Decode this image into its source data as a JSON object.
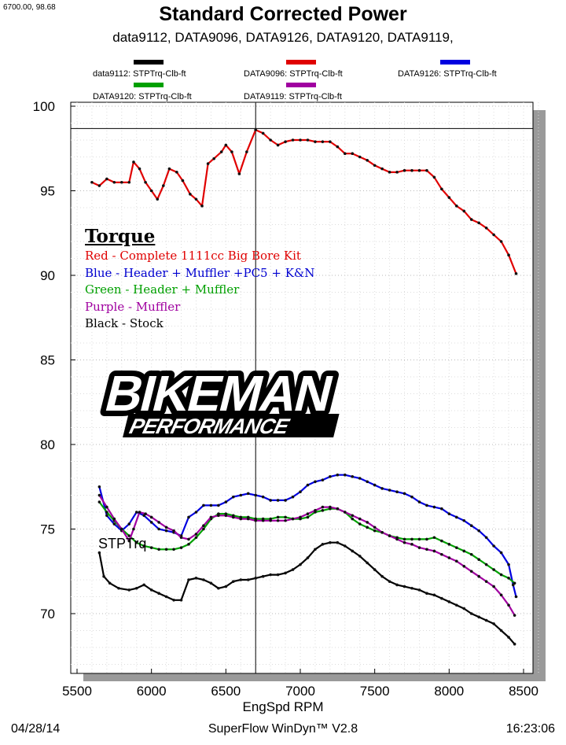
{
  "header": {
    "coord_readout": "6700.00, 98.68",
    "title": "Standard Corrected Power",
    "subtitle": "data9112, DATA9096, DATA9126, DATA9120, DATA9119,"
  },
  "legend": [
    {
      "label": "data9112: STPTrq-Clb-ft",
      "color": "#000000"
    },
    {
      "label": "DATA9096: STPTrq-Clb-ft",
      "color": "#e00000"
    },
    {
      "label": "DATA9126: STPTrq-Clb-ft",
      "color": "#0000e0"
    },
    {
      "label": "DATA9120: STPTrq-Clb-ft",
      "color": "#00a000"
    },
    {
      "label": "DATA9119: STPTrq-Clb-ft",
      "color": "#a000a0"
    }
  ],
  "annotation": {
    "heading": "Torque",
    "lines": [
      {
        "text": "Red - Complete 1111cc Big Bore Kit",
        "color": "#e00000"
      },
      {
        "text": "Blue - Header + Muffler +PC5 + K&N",
        "color": "#0000d0"
      },
      {
        "text": "Green - Header + Muffler",
        "color": "#00a000"
      },
      {
        "text": "Purple - Muffler",
        "color": "#a000a0"
      },
      {
        "text": "Black - Stock",
        "color": "#000000"
      }
    ]
  },
  "logo": {
    "line1": "BIKEMAN",
    "line2": "PERFORMANCE"
  },
  "footer": {
    "date": "04/28/14",
    "app": "SuperFlow WinDyn™ V2.8",
    "time": "16:23:06"
  },
  "chart_data": {
    "type": "line",
    "title": "Standard Corrected Power",
    "xlabel": "EngSpd  RPM",
    "ylabel": "",
    "series_label": "STPTrq",
    "xlim": [
      5500,
      8600
    ],
    "ylim": [
      67,
      100.5
    ],
    "xticks": [
      5500,
      6000,
      6500,
      7000,
      7500,
      8000,
      8500
    ],
    "yticks": [
      70,
      75,
      80,
      85,
      90,
      95,
      100
    ],
    "cursor": {
      "x": 6700,
      "y": 98.68
    },
    "grid": true,
    "series": [
      {
        "name": "data9112: STPTrq-Clb-ft",
        "color": "#000000",
        "points": [
          [
            5650,
            73.6
          ],
          [
            5680,
            72.2
          ],
          [
            5720,
            71.8
          ],
          [
            5780,
            71.5
          ],
          [
            5850,
            71.4
          ],
          [
            5900,
            71.5
          ],
          [
            5950,
            71.7
          ],
          [
            6000,
            71.4
          ],
          [
            6050,
            71.2
          ],
          [
            6100,
            71.0
          ],
          [
            6150,
            70.8
          ],
          [
            6200,
            70.8
          ],
          [
            6250,
            72.0
          ],
          [
            6300,
            72.1
          ],
          [
            6350,
            72.0
          ],
          [
            6400,
            71.8
          ],
          [
            6450,
            71.5
          ],
          [
            6500,
            71.6
          ],
          [
            6550,
            71.9
          ],
          [
            6600,
            72.0
          ],
          [
            6650,
            72.0
          ],
          [
            6700,
            72.1
          ],
          [
            6750,
            72.2
          ],
          [
            6800,
            72.3
          ],
          [
            6850,
            72.3
          ],
          [
            6900,
            72.4
          ],
          [
            6950,
            72.6
          ],
          [
            7000,
            72.9
          ],
          [
            7050,
            73.3
          ],
          [
            7100,
            73.8
          ],
          [
            7150,
            74.1
          ],
          [
            7200,
            74.2
          ],
          [
            7250,
            74.2
          ],
          [
            7300,
            74.0
          ],
          [
            7350,
            73.7
          ],
          [
            7400,
            73.4
          ],
          [
            7450,
            73.0
          ],
          [
            7500,
            72.6
          ],
          [
            7550,
            72.2
          ],
          [
            7600,
            71.9
          ],
          [
            7650,
            71.7
          ],
          [
            7700,
            71.6
          ],
          [
            7750,
            71.5
          ],
          [
            7800,
            71.4
          ],
          [
            7850,
            71.2
          ],
          [
            7900,
            71.1
          ],
          [
            7950,
            70.9
          ],
          [
            8000,
            70.7
          ],
          [
            8050,
            70.5
          ],
          [
            8100,
            70.3
          ],
          [
            8150,
            70.0
          ],
          [
            8200,
            69.8
          ],
          [
            8250,
            69.6
          ],
          [
            8300,
            69.4
          ],
          [
            8350,
            69.0
          ],
          [
            8400,
            68.6
          ],
          [
            8440,
            68.2
          ]
        ]
      },
      {
        "name": "DATA9096: STPTrq-Clb-ft",
        "color": "#e00000",
        "points": [
          [
            5600,
            95.5
          ],
          [
            5650,
            95.3
          ],
          [
            5700,
            95.7
          ],
          [
            5750,
            95.5
          ],
          [
            5800,
            95.5
          ],
          [
            5850,
            95.5
          ],
          [
            5880,
            96.7
          ],
          [
            5920,
            96.3
          ],
          [
            5960,
            95.5
          ],
          [
            6000,
            95.0
          ],
          [
            6040,
            94.5
          ],
          [
            6080,
            95.3
          ],
          [
            6120,
            96.3
          ],
          [
            6170,
            96.1
          ],
          [
            6210,
            95.6
          ],
          [
            6260,
            94.8
          ],
          [
            6300,
            94.5
          ],
          [
            6340,
            94.1
          ],
          [
            6380,
            96.6
          ],
          [
            6420,
            96.9
          ],
          [
            6470,
            97.3
          ],
          [
            6500,
            97.7
          ],
          [
            6540,
            97.3
          ],
          [
            6590,
            96.0
          ],
          [
            6640,
            97.3
          ],
          [
            6700,
            98.6
          ],
          [
            6750,
            98.4
          ],
          [
            6800,
            98.0
          ],
          [
            6850,
            97.7
          ],
          [
            6900,
            97.9
          ],
          [
            6950,
            98.0
          ],
          [
            7000,
            98.0
          ],
          [
            7050,
            98.0
          ],
          [
            7100,
            97.9
          ],
          [
            7150,
            97.9
          ],
          [
            7200,
            97.9
          ],
          [
            7250,
            97.6
          ],
          [
            7300,
            97.2
          ],
          [
            7350,
            97.2
          ],
          [
            7400,
            97.0
          ],
          [
            7450,
            96.8
          ],
          [
            7500,
            96.5
          ],
          [
            7550,
            96.3
          ],
          [
            7600,
            96.1
          ],
          [
            7650,
            96.1
          ],
          [
            7700,
            96.2
          ],
          [
            7750,
            96.2
          ],
          [
            7800,
            96.2
          ],
          [
            7850,
            96.2
          ],
          [
            7900,
            95.8
          ],
          [
            7950,
            95.1
          ],
          [
            8000,
            94.6
          ],
          [
            8050,
            94.1
          ],
          [
            8100,
            93.8
          ],
          [
            8150,
            93.3
          ],
          [
            8200,
            93.1
          ],
          [
            8250,
            92.8
          ],
          [
            8300,
            92.4
          ],
          [
            8350,
            92.0
          ],
          [
            8400,
            91.2
          ],
          [
            8450,
            90.1
          ]
        ]
      },
      {
        "name": "DATA9126: STPTrq-Clb-ft",
        "color": "#0000e0",
        "points": [
          [
            5650,
            77.5
          ],
          [
            5700,
            75.8
          ],
          [
            5750,
            75.3
          ],
          [
            5800,
            74.9
          ],
          [
            5850,
            75.3
          ],
          [
            5900,
            76.0
          ],
          [
            5950,
            75.8
          ],
          [
            6000,
            75.4
          ],
          [
            6050,
            75.0
          ],
          [
            6100,
            74.9
          ],
          [
            6150,
            74.8
          ],
          [
            6200,
            74.6
          ],
          [
            6250,
            75.7
          ],
          [
            6300,
            76.0
          ],
          [
            6350,
            76.4
          ],
          [
            6400,
            76.4
          ],
          [
            6450,
            76.4
          ],
          [
            6500,
            76.6
          ],
          [
            6550,
            76.9
          ],
          [
            6600,
            77.0
          ],
          [
            6650,
            77.1
          ],
          [
            6700,
            77.0
          ],
          [
            6750,
            76.9
          ],
          [
            6800,
            76.7
          ],
          [
            6850,
            76.7
          ],
          [
            6900,
            76.7
          ],
          [
            6950,
            76.9
          ],
          [
            7000,
            77.2
          ],
          [
            7050,
            77.6
          ],
          [
            7100,
            77.8
          ],
          [
            7150,
            77.9
          ],
          [
            7200,
            78.1
          ],
          [
            7250,
            78.2
          ],
          [
            7300,
            78.2
          ],
          [
            7350,
            78.1
          ],
          [
            7400,
            78.0
          ],
          [
            7450,
            77.8
          ],
          [
            7500,
            77.6
          ],
          [
            7550,
            77.4
          ],
          [
            7600,
            77.3
          ],
          [
            7650,
            77.2
          ],
          [
            7700,
            77.1
          ],
          [
            7750,
            76.9
          ],
          [
            7800,
            76.6
          ],
          [
            7850,
            76.4
          ],
          [
            7900,
            76.3
          ],
          [
            7950,
            76.2
          ],
          [
            8000,
            75.9
          ],
          [
            8050,
            75.7
          ],
          [
            8100,
            75.5
          ],
          [
            8150,
            75.2
          ],
          [
            8200,
            74.9
          ],
          [
            8250,
            74.5
          ],
          [
            8300,
            74.0
          ],
          [
            8350,
            73.6
          ],
          [
            8400,
            72.9
          ],
          [
            8430,
            71.7
          ],
          [
            8450,
            71.0
          ]
        ]
      },
      {
        "name": "DATA9120: STPTrq-Clb-ft",
        "color": "#00a000",
        "points": [
          [
            5650,
            76.6
          ],
          [
            5700,
            76.0
          ],
          [
            5750,
            75.5
          ],
          [
            5800,
            75.0
          ],
          [
            5850,
            74.6
          ],
          [
            5900,
            74.2
          ],
          [
            5950,
            74.0
          ],
          [
            6000,
            73.9
          ],
          [
            6050,
            73.8
          ],
          [
            6100,
            73.8
          ],
          [
            6150,
            73.8
          ],
          [
            6200,
            73.9
          ],
          [
            6250,
            74.1
          ],
          [
            6300,
            74.5
          ],
          [
            6350,
            75.0
          ],
          [
            6400,
            75.6
          ],
          [
            6450,
            75.9
          ],
          [
            6500,
            75.9
          ],
          [
            6550,
            75.8
          ],
          [
            6600,
            75.7
          ],
          [
            6650,
            75.7
          ],
          [
            6700,
            75.6
          ],
          [
            6750,
            75.6
          ],
          [
            6800,
            75.6
          ],
          [
            6850,
            75.7
          ],
          [
            6900,
            75.7
          ],
          [
            6950,
            75.6
          ],
          [
            7000,
            75.6
          ],
          [
            7050,
            75.7
          ],
          [
            7100,
            76.0
          ],
          [
            7150,
            76.1
          ],
          [
            7200,
            76.2
          ],
          [
            7250,
            76.2
          ],
          [
            7300,
            76.0
          ],
          [
            7350,
            75.6
          ],
          [
            7400,
            75.3
          ],
          [
            7450,
            75.1
          ],
          [
            7500,
            74.9
          ],
          [
            7550,
            74.8
          ],
          [
            7600,
            74.6
          ],
          [
            7650,
            74.5
          ],
          [
            7700,
            74.4
          ],
          [
            7750,
            74.4
          ],
          [
            7800,
            74.4
          ],
          [
            7850,
            74.4
          ],
          [
            7900,
            74.5
          ],
          [
            7950,
            74.3
          ],
          [
            8000,
            74.1
          ],
          [
            8050,
            73.9
          ],
          [
            8100,
            73.7
          ],
          [
            8150,
            73.5
          ],
          [
            8200,
            73.2
          ],
          [
            8250,
            72.9
          ],
          [
            8300,
            72.6
          ],
          [
            8350,
            72.3
          ],
          [
            8400,
            72.1
          ],
          [
            8440,
            71.8
          ]
        ]
      },
      {
        "name": "DATA9119: STPTrq-Clb-ft",
        "color": "#a000a0",
        "points": [
          [
            5650,
            77.0
          ],
          [
            5700,
            76.3
          ],
          [
            5750,
            75.6
          ],
          [
            5800,
            75.0
          ],
          [
            5850,
            74.3
          ],
          [
            5880,
            75.0
          ],
          [
            5920,
            76.0
          ],
          [
            5960,
            75.9
          ],
          [
            6000,
            75.7
          ],
          [
            6050,
            75.4
          ],
          [
            6100,
            75.1
          ],
          [
            6150,
            74.9
          ],
          [
            6200,
            74.5
          ],
          [
            6250,
            74.4
          ],
          [
            6300,
            74.7
          ],
          [
            6350,
            75.2
          ],
          [
            6400,
            75.7
          ],
          [
            6450,
            75.8
          ],
          [
            6500,
            75.8
          ],
          [
            6550,
            75.7
          ],
          [
            6600,
            75.6
          ],
          [
            6650,
            75.6
          ],
          [
            6700,
            75.5
          ],
          [
            6750,
            75.5
          ],
          [
            6800,
            75.5
          ],
          [
            6850,
            75.5
          ],
          [
            6900,
            75.5
          ],
          [
            6950,
            75.6
          ],
          [
            7000,
            75.7
          ],
          [
            7050,
            75.9
          ],
          [
            7100,
            76.1
          ],
          [
            7150,
            76.3
          ],
          [
            7200,
            76.3
          ],
          [
            7250,
            76.2
          ],
          [
            7300,
            76.0
          ],
          [
            7350,
            75.8
          ],
          [
            7400,
            75.6
          ],
          [
            7450,
            75.4
          ],
          [
            7500,
            75.1
          ],
          [
            7550,
            74.8
          ],
          [
            7600,
            74.6
          ],
          [
            7650,
            74.4
          ],
          [
            7700,
            74.2
          ],
          [
            7750,
            74.1
          ],
          [
            7800,
            73.9
          ],
          [
            7850,
            73.8
          ],
          [
            7900,
            73.7
          ],
          [
            7950,
            73.5
          ],
          [
            8000,
            73.3
          ],
          [
            8050,
            73.1
          ],
          [
            8100,
            72.8
          ],
          [
            8150,
            72.5
          ],
          [
            8200,
            72.2
          ],
          [
            8250,
            71.9
          ],
          [
            8300,
            71.6
          ],
          [
            8350,
            71.1
          ],
          [
            8400,
            70.5
          ],
          [
            8440,
            69.9
          ]
        ]
      }
    ]
  }
}
